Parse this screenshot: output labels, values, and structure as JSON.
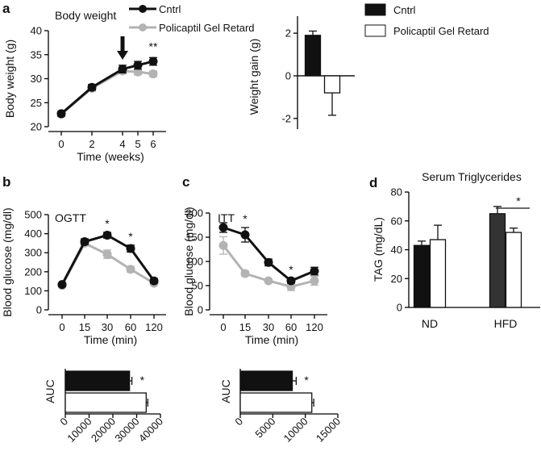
{
  "colors": {
    "cntrl": "#111111",
    "treated": "#b3b3b3",
    "treated_bar": "#ffffff",
    "axis": "#000000"
  },
  "panel_labels": {
    "a": "a",
    "b": "b",
    "c": "c",
    "d": "d"
  },
  "legend": {
    "cntrl": "Cntrl",
    "treated": "Policaptil Gel Retard"
  },
  "chart_data": [
    {
      "id": "body-weight",
      "type": "line",
      "title": "Body weight",
      "xlabel": "Time (weeks)",
      "ylabel": "Body weight (g)",
      "x": [
        0,
        2,
        4,
        5,
        6
      ],
      "xlim": [
        -0.6,
        6.6
      ],
      "ylim": [
        20,
        40
      ],
      "yticks": [
        20,
        25,
        30,
        35,
        40
      ],
      "series": [
        {
          "name": "Cntrl",
          "values": [
            22.7,
            28.2,
            32.0,
            32.8,
            33.6
          ],
          "errors": [
            0.5,
            0.6,
            0.8,
            0.8,
            0.8
          ]
        },
        {
          "name": "Policaptil Gel Retard",
          "values": [
            22.6,
            28.0,
            31.6,
            31.4,
            31.0
          ],
          "errors": [
            0.5,
            0.6,
            0.6,
            0.6,
            0.6
          ]
        }
      ],
      "annotations": [
        {
          "x": 6,
          "text": "**"
        }
      ],
      "arrow_at_x": 4
    },
    {
      "id": "weight-gain",
      "type": "bar",
      "ylabel": "Weight gain (g)",
      "categories": [
        "Cntrl",
        "Policaptil Gel Retard"
      ],
      "values": [
        1.9,
        -0.8
      ],
      "errors": [
        0.2,
        1.05
      ],
      "ylim": [
        -2.5,
        2.8
      ],
      "yticks": [
        -2,
        0,
        2
      ]
    },
    {
      "id": "ogtt",
      "type": "line",
      "title": "OGTT",
      "xlabel": "Time (min)",
      "ylabel": "Blood  glucose (mg/dl)",
      "categories": [
        "0",
        "15",
        "30",
        "60",
        "120"
      ],
      "ylim": [
        0,
        500
      ],
      "yticks": [
        0,
        100,
        200,
        300,
        400,
        500
      ],
      "series": [
        {
          "name": "Cntrl",
          "values": [
            133,
            358,
            392,
            322,
            152
          ],
          "errors": [
            10,
            15,
            15,
            18,
            12
          ]
        },
        {
          "name": "Policaptil Gel Retard",
          "values": [
            128,
            350,
            292,
            213,
            140
          ],
          "errors": [
            10,
            15,
            22,
            15,
            10
          ]
        }
      ],
      "annotations": [
        {
          "index": 2,
          "text": "*"
        },
        {
          "index": 3,
          "text": "*"
        }
      ]
    },
    {
      "id": "ogtt-auc",
      "type": "bar",
      "orientation": "horizontal",
      "ylabel": "AUC",
      "categories": [
        "Cntrl",
        "Policaptil Gel Retard"
      ],
      "values": [
        27000,
        34000
      ],
      "errors": [
        1000,
        700
      ],
      "xlim": [
        0,
        40000
      ],
      "xticks": [
        "0",
        "10000",
        "20000",
        "30000",
        "40000"
      ],
      "annotation": "*"
    },
    {
      "id": "itt",
      "type": "line",
      "title": "ITT",
      "xlabel": "Time (min)",
      "ylabel": "Blood glucose (mg/dl)",
      "categories": [
        "0",
        "15",
        "30",
        "60",
        "120"
      ],
      "ylim": [
        0,
        200
      ],
      "yticks": [
        0,
        50,
        100,
        150,
        200
      ],
      "series": [
        {
          "name": "Cntrl",
          "values": [
            170,
            155,
            98,
            60,
            80
          ],
          "errors": [
            10,
            15,
            7,
            5,
            8
          ]
        },
        {
          "name": "Policaptil Gel Retard",
          "values": [
            133,
            75,
            60,
            48,
            60
          ],
          "errors": [
            18,
            5,
            4,
            8,
            9
          ]
        }
      ],
      "annotations": [
        {
          "index": 1,
          "text": "*"
        },
        {
          "index": 3,
          "text": "*"
        }
      ]
    },
    {
      "id": "itt-auc",
      "type": "bar",
      "orientation": "horizontal",
      "ylabel": "AUC",
      "categories": [
        "Cntrl",
        "Policaptil Gel Retard"
      ],
      "values": [
        8000,
        11000
      ],
      "errors": [
        600,
        300
      ],
      "xlim": [
        0,
        15000
      ],
      "xticks": [
        "0",
        "5000",
        "10000",
        "15000"
      ],
      "annotation": "*"
    },
    {
      "id": "serum-tg",
      "type": "bar",
      "title": "Serum Triglycerides",
      "ylabel": "TAG (mg/dL)",
      "groups": [
        "ND",
        "HFD"
      ],
      "series": [
        {
          "name": "Cntrl",
          "values": [
            43,
            65
          ],
          "errors": [
            3,
            5
          ]
        },
        {
          "name": "Policaptil Gel Retard",
          "values": [
            47,
            52
          ],
          "errors": [
            10,
            3
          ]
        }
      ],
      "ylim": [
        0,
        80
      ],
      "yticks": [
        0,
        20,
        40,
        60,
        80
      ],
      "annotation": {
        "group": 1,
        "text": "*"
      }
    }
  ]
}
